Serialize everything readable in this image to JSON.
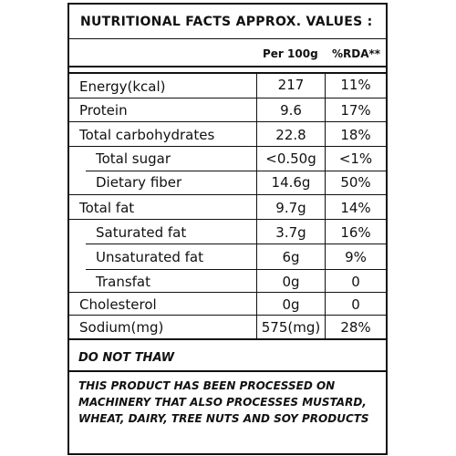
{
  "title": "NUTRITIONAL FACTS APPROX. VALUES :",
  "columns": {
    "per100g": "Per 100g",
    "rda": "%RDA**"
  },
  "rows": [
    {
      "name": "Energy(kcal)",
      "value": "217",
      "rda": "11%"
    },
    {
      "name": "Protein",
      "value": "9.6",
      "rda": "17%"
    },
    {
      "name": "Total carbohydrates",
      "value": "22.8",
      "rda": "18%"
    },
    {
      "name": "Total sugar",
      "value": "<0.50g",
      "rda": "<1%"
    },
    {
      "name": "Dietary fiber",
      "value": "14.6g",
      "rda": "50%"
    },
    {
      "name": "Total fat",
      "value": "9.7g",
      "rda": "14%"
    },
    {
      "name": "Saturated fat",
      "value": "3.7g",
      "rda": "16%"
    },
    {
      "name": "Unsaturated fat",
      "value": "6g",
      "rda": "9%"
    },
    {
      "name": "Transfat",
      "value": "0g",
      "rda": "0"
    },
    {
      "name": "Cholesterol",
      "value": "0g",
      "rda": "0"
    },
    {
      "name": "Sodium(mg)",
      "value": "575(mg)",
      "rda": "28%"
    }
  ],
  "storage_note": "DO NOT THAW",
  "allergen_statement": "THIS PRODUCT HAS BEEN PROCESSED ON MACHINERY THAT ALSO PROCESSES MUSTARD, WHEAT, DAIRY, TREE NUTS AND SOY PRODUCTS"
}
